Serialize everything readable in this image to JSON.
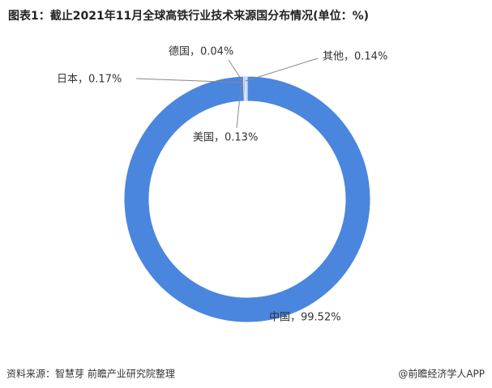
{
  "chart_data": {
    "type": "donut",
    "title": "图表1：截止2021年11月全球高铁行业技术来源国分布情况(单位：%)",
    "values": [
      99.52,
      0.17,
      0.13,
      0.04,
      0.14
    ],
    "value_labels": [
      "中国，99.52%",
      "日本，0.17%",
      "美国，0.13%",
      "德国，0.04%",
      "其他，0.14%"
    ],
    "colors": [
      "#4a86de",
      "#a9c4ee",
      "#7fa6e6",
      "#c7d8f4",
      "#93b4ea"
    ],
    "source": "资料来源：智慧芽 前瞻产业研究院整理",
    "credit": "@前瞻经济学人APP"
  }
}
